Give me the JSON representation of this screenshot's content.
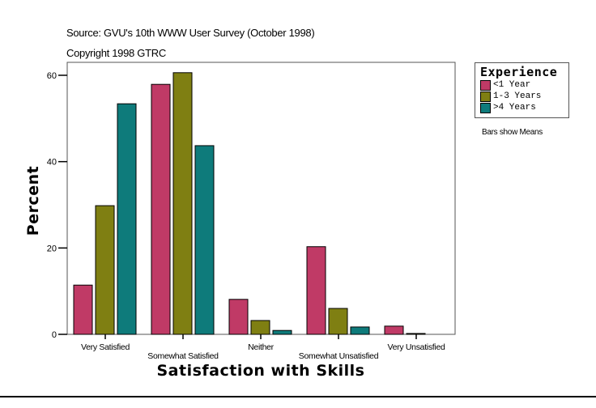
{
  "header": {
    "source": "Source: GVU's 10th WWW User Survey (October 1998)",
    "copyright": "Copyright 1998 GTRC"
  },
  "note": "Bars show Means",
  "chart_data": {
    "type": "bar",
    "xlabel": "Satisfaction with Skills",
    "ylabel": "Percent",
    "ylim": [
      0,
      63
    ],
    "yticks": [
      0,
      20,
      40,
      60
    ],
    "grid": false,
    "legend_placement": "right",
    "legend_title": "Experience",
    "categories": [
      "Very Satisfied",
      "Somewhat Satisfied",
      "Neither",
      "Somewhat Unsatisfied",
      "Very Unsatisfied"
    ],
    "series": [
      {
        "name": "<1 Year",
        "color": "#c03a66",
        "values": [
          11.4,
          57.9,
          8.1,
          20.3,
          1.9
        ]
      },
      {
        "name": "1-3 Years",
        "color": "#7f7f12",
        "values": [
          29.8,
          60.6,
          3.2,
          6.0,
          0.2
        ]
      },
      {
        "name": ">4 Years",
        "color": "#0e7b7b",
        "values": [
          53.4,
          43.7,
          0.9,
          1.7,
          0.0
        ]
      }
    ]
  }
}
